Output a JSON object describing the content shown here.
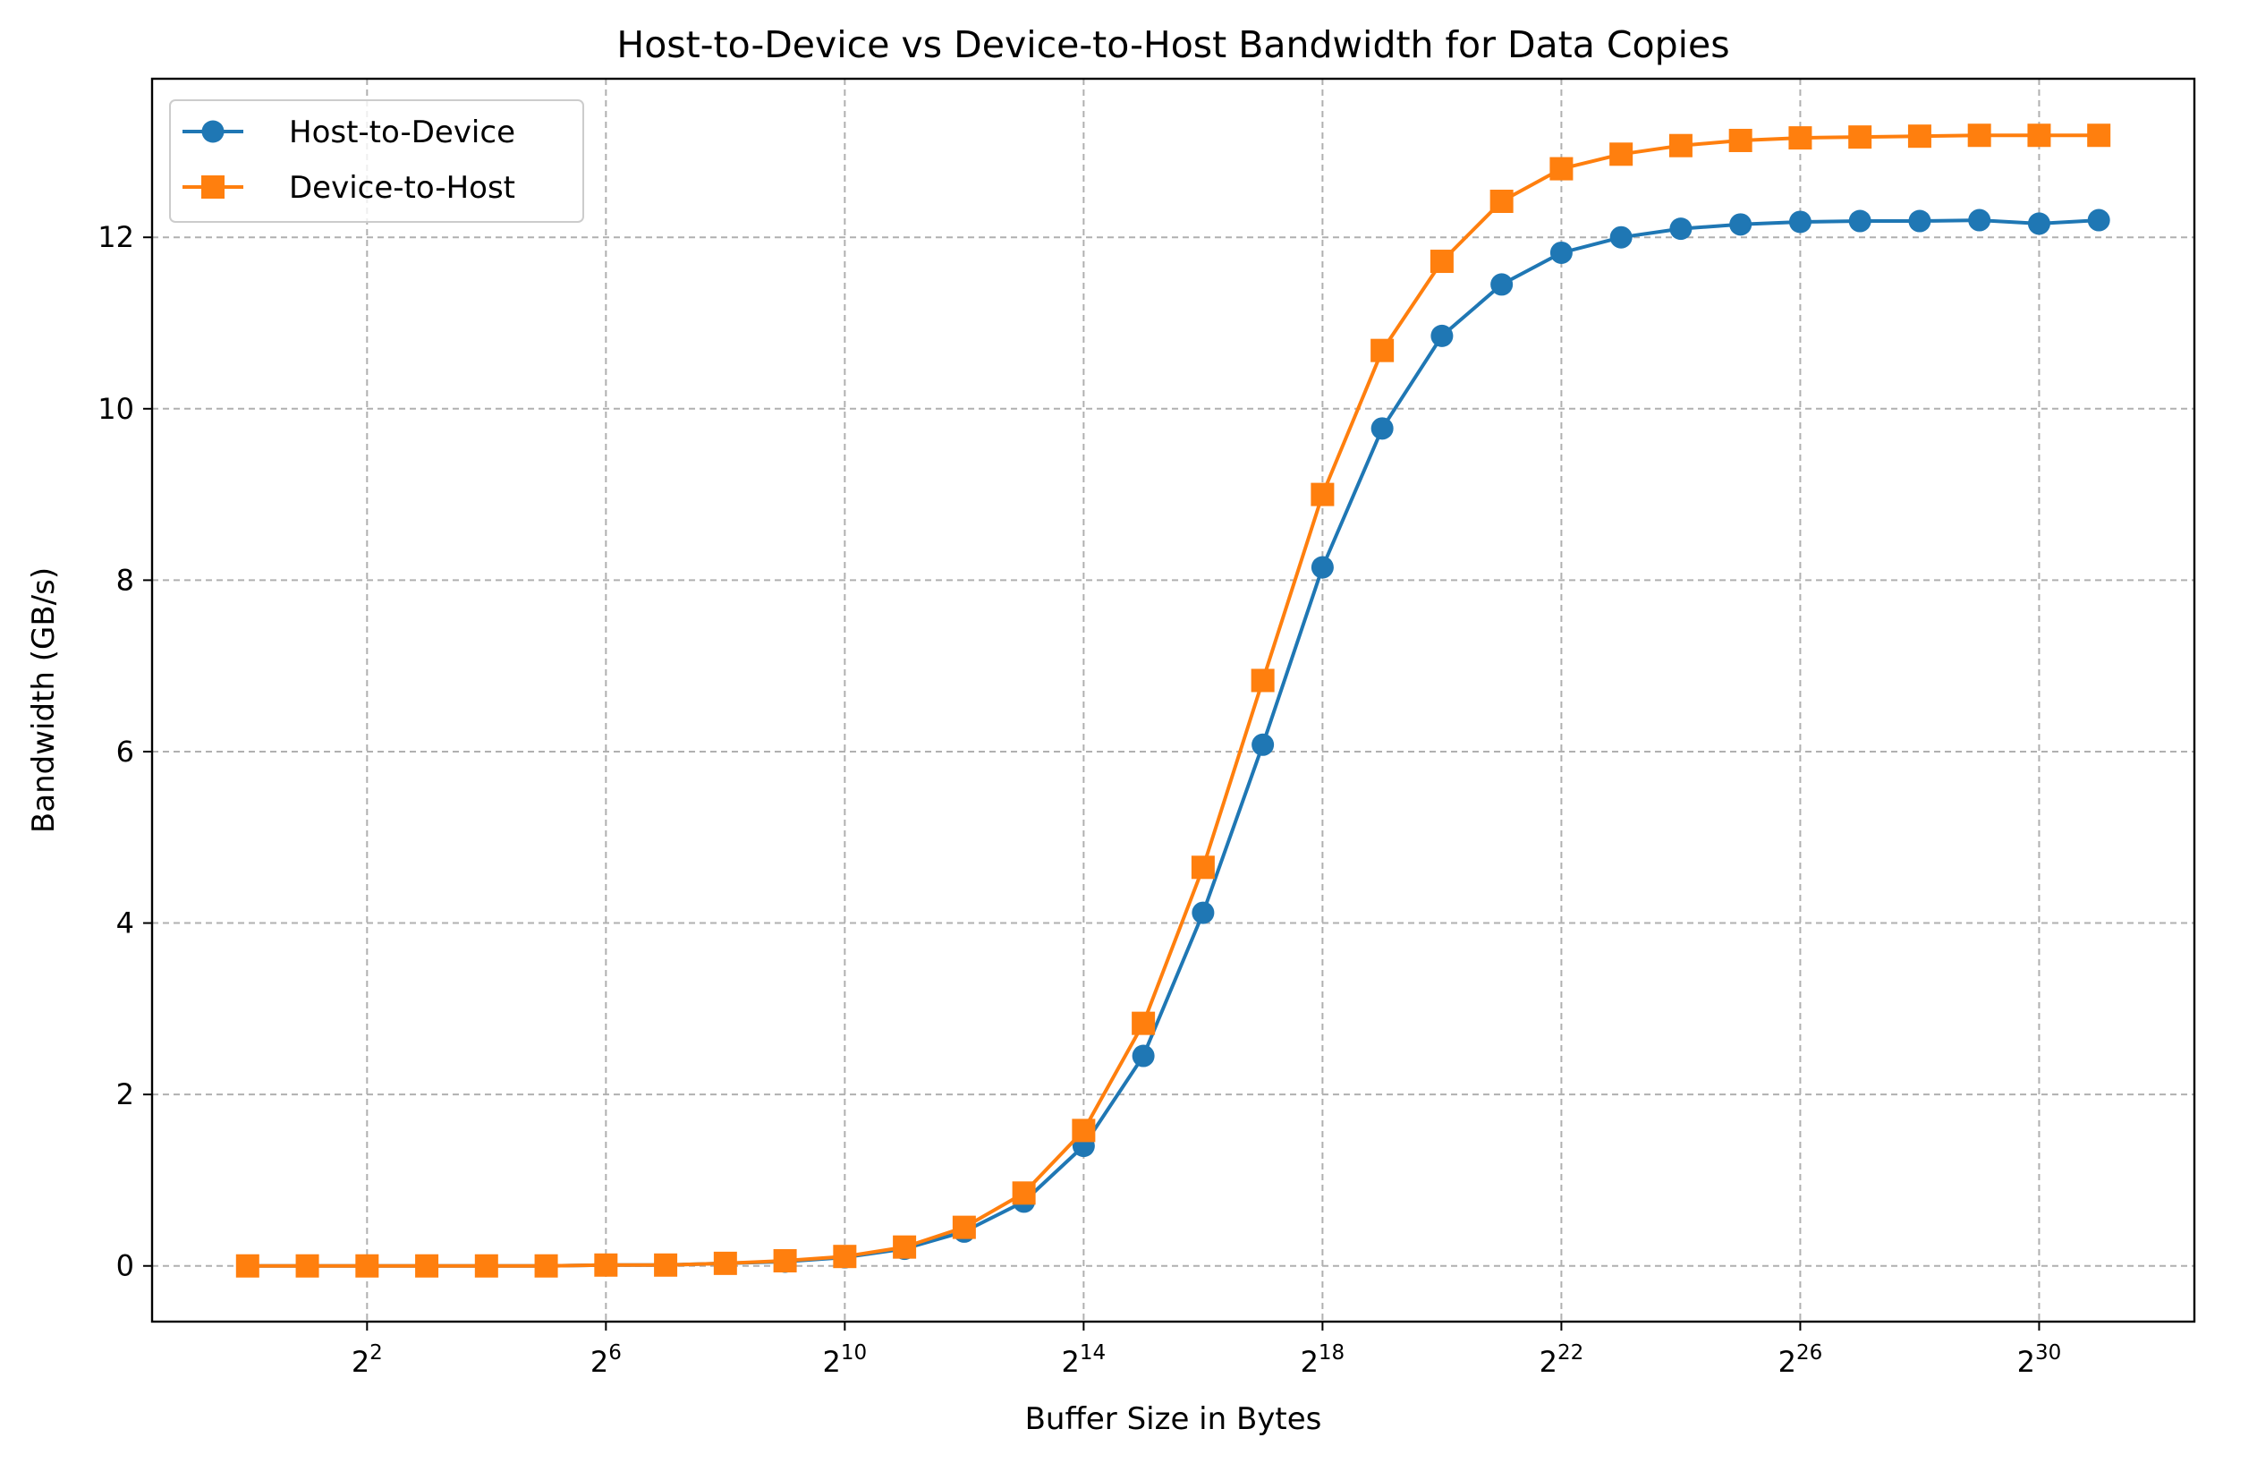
{
  "chart_data": {
    "type": "line",
    "title": "Host-to-Device vs Device-to-Host Bandwidth for Data Copies",
    "xlabel": "Buffer Size in Bytes",
    "ylabel": "Bandwidth (GB/s)",
    "xscale": "log2",
    "x_exponents": [
      0,
      1,
      2,
      3,
      4,
      5,
      6,
      7,
      8,
      9,
      10,
      11,
      12,
      13,
      14,
      15,
      16,
      17,
      18,
      19,
      20,
      21,
      22,
      23,
      24,
      25,
      26,
      27,
      28,
      29,
      30,
      31
    ],
    "x_tick_exponents": [
      2,
      6,
      10,
      14,
      18,
      22,
      26,
      30
    ],
    "x_tick_labels": [
      "2",
      "2",
      "2",
      "2",
      "2",
      "2",
      "2",
      "2"
    ],
    "x_tick_sups": [
      "2",
      "6",
      "10",
      "14",
      "18",
      "22",
      "26",
      "30"
    ],
    "xlim_exponents": [
      -1.6,
      32.6
    ],
    "ylim": [
      -0.65,
      13.85
    ],
    "y_ticks": [
      0,
      2,
      4,
      6,
      8,
      10,
      12
    ],
    "y_tick_labels": [
      "0",
      "2",
      "4",
      "6",
      "8",
      "10",
      "12"
    ],
    "grid": true,
    "legend_position": "top-left",
    "series": [
      {
        "name": "Host-to-Device",
        "color": "#1f77b4",
        "marker": "circle",
        "values": [
          0.0,
          0.0,
          0.0,
          0.0,
          0.0,
          0.0,
          0.01,
          0.01,
          0.03,
          0.05,
          0.1,
          0.2,
          0.4,
          0.75,
          1.4,
          2.45,
          4.12,
          6.08,
          8.15,
          9.77,
          10.85,
          11.45,
          11.82,
          12.0,
          12.1,
          12.15,
          12.18,
          12.19,
          12.19,
          12.2,
          12.16,
          12.2
        ]
      },
      {
        "name": "Device-to-Host",
        "color": "#ff7f0e",
        "marker": "square",
        "values": [
          0.0,
          0.0,
          0.0,
          0.0,
          0.0,
          0.0,
          0.01,
          0.01,
          0.03,
          0.06,
          0.11,
          0.22,
          0.45,
          0.85,
          1.58,
          2.83,
          4.65,
          6.83,
          9.0,
          10.68,
          11.72,
          12.42,
          12.8,
          12.97,
          13.07,
          13.13,
          13.16,
          13.17,
          13.18,
          13.19,
          13.19,
          13.19
        ]
      }
    ]
  }
}
